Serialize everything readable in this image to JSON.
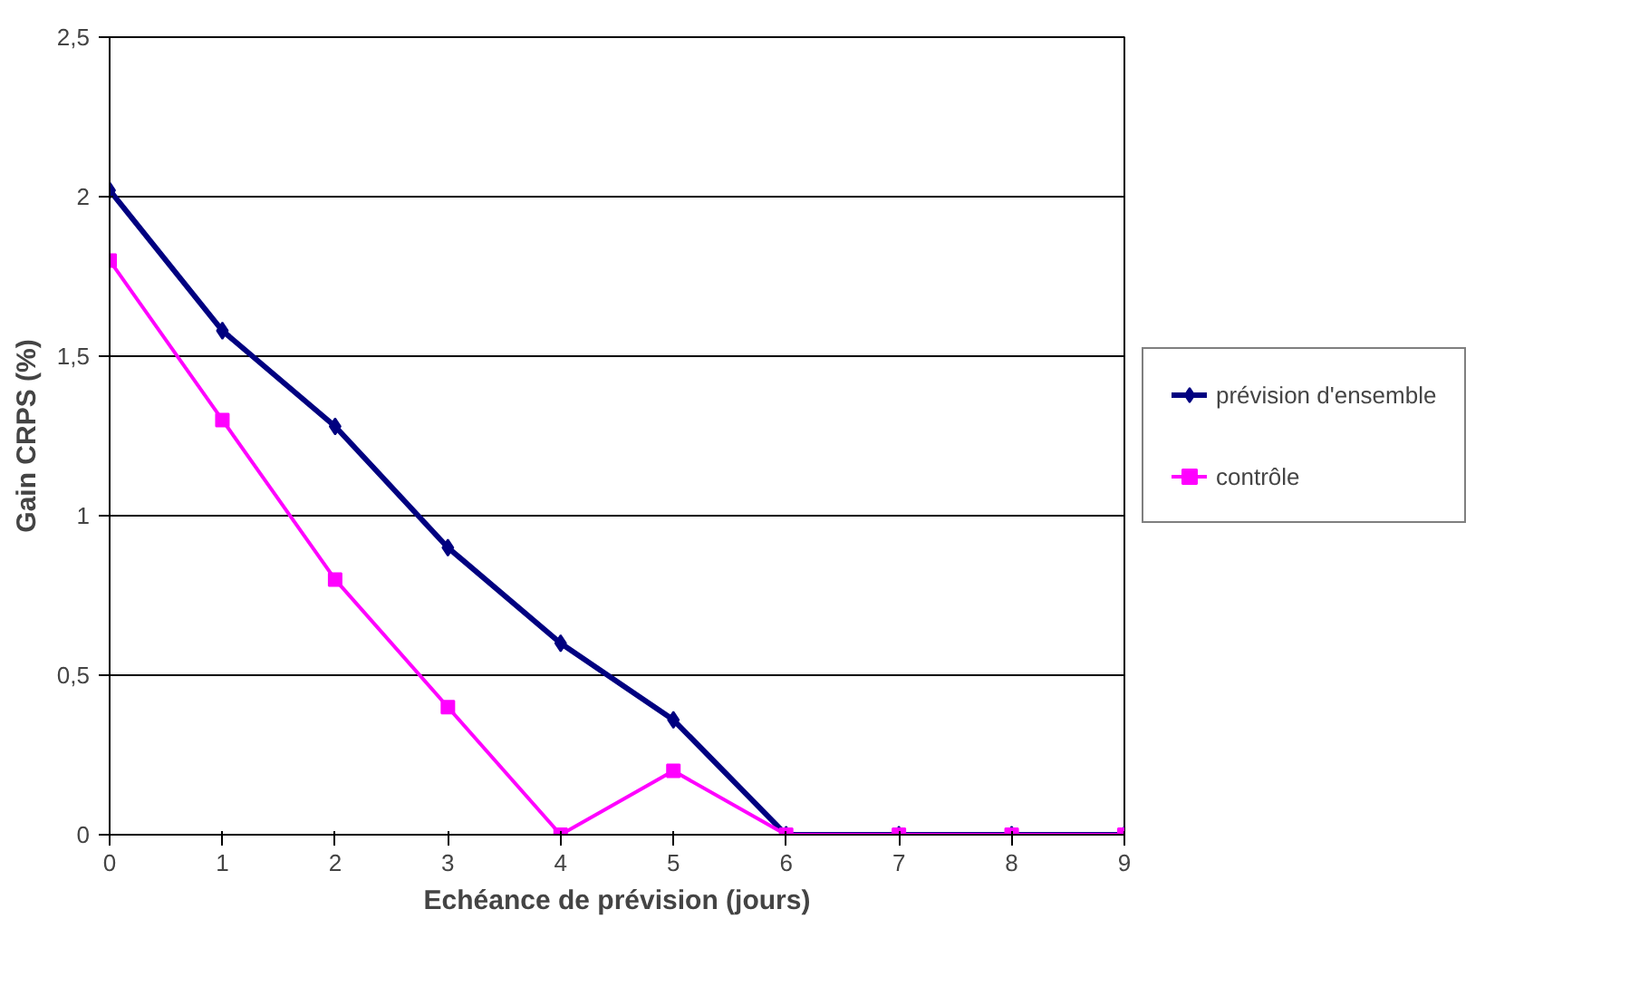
{
  "chart_data": {
    "type": "line",
    "xlabel": "Echéance de prévision (jours)",
    "ylabel": "Gain CRPS (%)",
    "x": [
      0,
      1,
      2,
      3,
      4,
      5,
      6,
      7,
      8,
      9
    ],
    "series": [
      {
        "name": "prévision d'ensemble",
        "color": "#000080",
        "marker": "diamond",
        "values": [
          2.02,
          1.58,
          1.28,
          0.9,
          0.6,
          0.36,
          0,
          0,
          0,
          0
        ]
      },
      {
        "name": "contrôle",
        "color": "#ff00ff",
        "marker": "square",
        "values": [
          1.8,
          1.3,
          0.8,
          0.4,
          0,
          0.2,
          0,
          0,
          0,
          0
        ]
      }
    ],
    "xlim": [
      0,
      9
    ],
    "xticks": [
      0,
      1,
      2,
      3,
      4,
      5,
      6,
      7,
      8,
      9
    ],
    "ylim": [
      0,
      2.5
    ],
    "yticks": [
      0,
      {
        "value": 0.5,
        "label": "0,5"
      },
      1,
      {
        "value": 1.5,
        "label": "1,5"
      },
      2,
      {
        "value": 2.5,
        "label": "2,5"
      }
    ],
    "grid": "y",
    "legend": "right",
    "line_style": "solid"
  }
}
